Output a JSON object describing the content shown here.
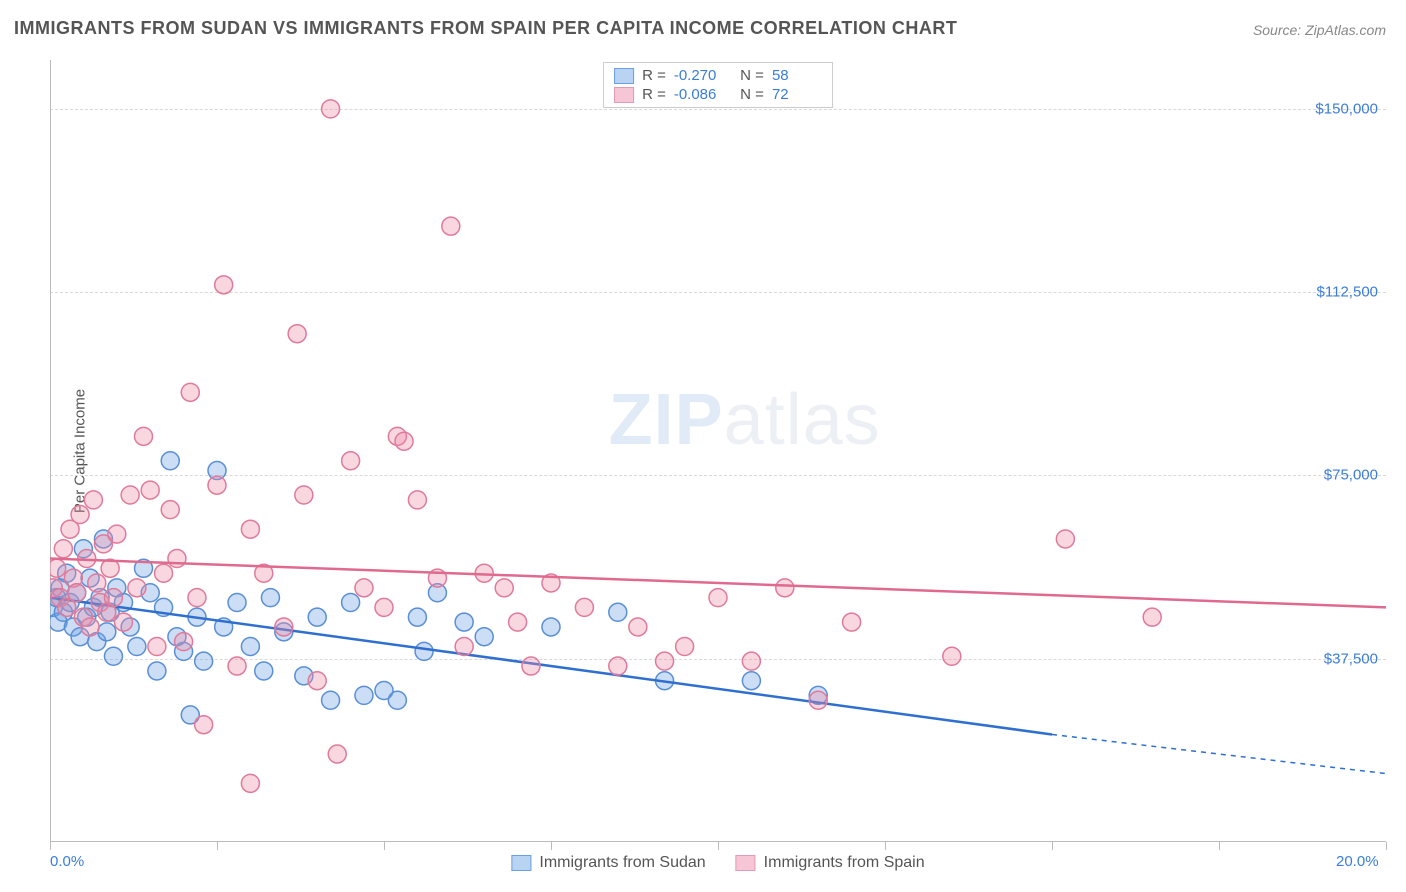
{
  "title": "IMMIGRANTS FROM SUDAN VS IMMIGRANTS FROM SPAIN PER CAPITA INCOME CORRELATION CHART",
  "source": "Source: ZipAtlas.com",
  "watermark": {
    "bold": "ZIP",
    "rest": "atlas"
  },
  "chart": {
    "type": "scatter",
    "ylabel": "Per Capita Income",
    "xlim": [
      0,
      20
    ],
    "ylim": [
      0,
      160000
    ],
    "x_ticks": [
      0,
      2.5,
      5,
      7.5,
      10,
      12.5,
      15,
      17.5,
      20
    ],
    "x_tick_labels_shown": {
      "0": "0.0%",
      "20": "20.0%"
    },
    "y_gridlines": [
      37500,
      75000,
      112500,
      150000
    ],
    "y_tick_labels": {
      "37500": "$37,500",
      "75000": "$75,000",
      "112500": "$112,500",
      "150000": "$150,000"
    },
    "background_color": "#ffffff",
    "grid_color": "#d8d8d8",
    "axis_color": "#bbbbbb",
    "tick_label_color": "#3b7dd8",
    "marker_radius": 9,
    "marker_stroke_width": 1.5,
    "trend_line_width": 2.5,
    "series": [
      {
        "name": "Immigrants from Sudan",
        "legend_label": "Immigrants from Sudan",
        "fill": "rgba(106,160,230,0.35)",
        "stroke": "#5a8fd6",
        "line_color": "#2f6fd0",
        "swatch_fill": "#b9d3f2",
        "swatch_border": "#6a9fe0",
        "R": "-0.270",
        "N": "58",
        "trend": {
          "x1": 0,
          "y1": 50000,
          "x2": 15,
          "y2": 22000,
          "extend_x": 20,
          "extend_y": 14000
        },
        "points": [
          [
            0.05,
            48000
          ],
          [
            0.1,
            50000
          ],
          [
            0.12,
            45000
          ],
          [
            0.15,
            52000
          ],
          [
            0.2,
            47000
          ],
          [
            0.25,
            55000
          ],
          [
            0.3,
            49000
          ],
          [
            0.35,
            44000
          ],
          [
            0.4,
            51000
          ],
          [
            0.45,
            42000
          ],
          [
            0.5,
            60000
          ],
          [
            0.55,
            46000
          ],
          [
            0.6,
            54000
          ],
          [
            0.65,
            48000
          ],
          [
            0.7,
            41000
          ],
          [
            0.75,
            50000
          ],
          [
            0.8,
            62000
          ],
          [
            0.85,
            43000
          ],
          [
            0.9,
            47000
          ],
          [
            0.95,
            38000
          ],
          [
            1.0,
            52000
          ],
          [
            1.1,
            49000
          ],
          [
            1.2,
            44000
          ],
          [
            1.3,
            40000
          ],
          [
            1.4,
            56000
          ],
          [
            1.5,
            51000
          ],
          [
            1.6,
            35000
          ],
          [
            1.7,
            48000
          ],
          [
            1.8,
            78000
          ],
          [
            1.9,
            42000
          ],
          [
            2.0,
            39000
          ],
          [
            2.1,
            26000
          ],
          [
            2.2,
            46000
          ],
          [
            2.3,
            37000
          ],
          [
            2.5,
            76000
          ],
          [
            2.6,
            44000
          ],
          [
            2.8,
            49000
          ],
          [
            3.0,
            40000
          ],
          [
            3.2,
            35000
          ],
          [
            3.3,
            50000
          ],
          [
            3.5,
            43000
          ],
          [
            3.8,
            34000
          ],
          [
            4.0,
            46000
          ],
          [
            4.2,
            29000
          ],
          [
            4.5,
            49000
          ],
          [
            4.7,
            30000
          ],
          [
            5.0,
            31000
          ],
          [
            5.2,
            29000
          ],
          [
            5.5,
            46000
          ],
          [
            5.6,
            39000
          ],
          [
            5.8,
            51000
          ],
          [
            6.2,
            45000
          ],
          [
            6.5,
            42000
          ],
          [
            7.5,
            44000
          ],
          [
            8.5,
            47000
          ],
          [
            9.2,
            33000
          ],
          [
            10.5,
            33000
          ],
          [
            11.5,
            30000
          ]
        ]
      },
      {
        "name": "Immigrants from Spain",
        "legend_label": "Immigrants from Spain",
        "fill": "rgba(238,140,170,0.35)",
        "stroke": "#e07a9a",
        "line_color": "#e06a8f",
        "swatch_fill": "#f6c6d6",
        "swatch_border": "#e39ab3",
        "R": "-0.086",
        "N": "72",
        "trend": {
          "x1": 0,
          "y1": 58000,
          "x2": 20,
          "y2": 48000
        },
        "points": [
          [
            0.05,
            52000
          ],
          [
            0.1,
            56000
          ],
          [
            0.15,
            50000
          ],
          [
            0.2,
            60000
          ],
          [
            0.25,
            48000
          ],
          [
            0.3,
            64000
          ],
          [
            0.35,
            54000
          ],
          [
            0.4,
            51000
          ],
          [
            0.45,
            67000
          ],
          [
            0.5,
            46000
          ],
          [
            0.55,
            58000
          ],
          [
            0.6,
            44000
          ],
          [
            0.65,
            70000
          ],
          [
            0.7,
            53000
          ],
          [
            0.75,
            49000
          ],
          [
            0.8,
            61000
          ],
          [
            0.85,
            47000
          ],
          [
            0.9,
            56000
          ],
          [
            0.95,
            50000
          ],
          [
            1.0,
            63000
          ],
          [
            1.1,
            45000
          ],
          [
            1.2,
            71000
          ],
          [
            1.3,
            52000
          ],
          [
            1.4,
            83000
          ],
          [
            1.5,
            72000
          ],
          [
            1.6,
            40000
          ],
          [
            1.7,
            55000
          ],
          [
            1.8,
            68000
          ],
          [
            1.9,
            58000
          ],
          [
            2.0,
            41000
          ],
          [
            2.1,
            92000
          ],
          [
            2.2,
            50000
          ],
          [
            2.3,
            24000
          ],
          [
            2.5,
            73000
          ],
          [
            2.6,
            114000
          ],
          [
            2.8,
            36000
          ],
          [
            3.0,
            64000
          ],
          [
            3.2,
            55000
          ],
          [
            3.5,
            44000
          ],
          [
            3.7,
            104000
          ],
          [
            3.8,
            71000
          ],
          [
            4.0,
            33000
          ],
          [
            4.2,
            150000
          ],
          [
            4.3,
            18000
          ],
          [
            4.5,
            78000
          ],
          [
            4.7,
            52000
          ],
          [
            5.0,
            48000
          ],
          [
            5.2,
            83000
          ],
          [
            5.3,
            82000
          ],
          [
            5.5,
            70000
          ],
          [
            5.8,
            54000
          ],
          [
            6.0,
            126000
          ],
          [
            6.2,
            40000
          ],
          [
            6.5,
            55000
          ],
          [
            6.8,
            52000
          ],
          [
            7.0,
            45000
          ],
          [
            7.2,
            36000
          ],
          [
            7.5,
            53000
          ],
          [
            8.0,
            48000
          ],
          [
            8.5,
            36000
          ],
          [
            8.8,
            44000
          ],
          [
            9.2,
            37000
          ],
          [
            9.5,
            40000
          ],
          [
            10.0,
            50000
          ],
          [
            10.5,
            37000
          ],
          [
            11.0,
            52000
          ],
          [
            11.5,
            29000
          ],
          [
            12.0,
            45000
          ],
          [
            13.5,
            38000
          ],
          [
            15.2,
            62000
          ],
          [
            16.5,
            46000
          ],
          [
            3.0,
            12000
          ]
        ]
      }
    ]
  }
}
